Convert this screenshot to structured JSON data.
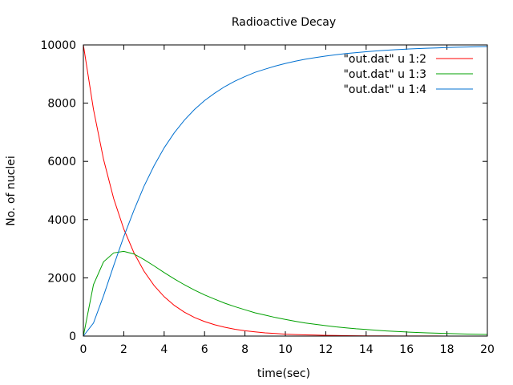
{
  "chart_data": {
    "type": "line",
    "title": "Radioactive Decay",
    "xlabel": "time(sec)",
    "ylabel": "No. of nuclei",
    "xlim": [
      0,
      20
    ],
    "ylim": [
      0,
      10000
    ],
    "grid": false,
    "legend_position": "top-right",
    "x_ticks": [
      "0",
      "2",
      "4",
      "6",
      "8",
      "10",
      "12",
      "14",
      "16",
      "18",
      "20"
    ],
    "y_ticks": [
      "0",
      "2000",
      "4000",
      "6000",
      "8000",
      "10000"
    ],
    "x": [
      0,
      0.5,
      1,
      1.5,
      2,
      2.5,
      3,
      3.5,
      4,
      4.5,
      5,
      5.5,
      6,
      6.5,
      7,
      7.5,
      8,
      8.5,
      9,
      9.5,
      10,
      10.5,
      11,
      11.5,
      12,
      12.5,
      13,
      13.5,
      14,
      14.5,
      15,
      15.5,
      16,
      16.5,
      17,
      17.5,
      18,
      18.5,
      19,
      19.5,
      20
    ],
    "series": [
      {
        "name": "\"out.dat\" u 1:2",
        "color": "#ff0000",
        "values": [
          10000,
          7788,
          6065,
          4724,
          3679,
          2865,
          2231,
          1738,
          1353,
          1054,
          821,
          639,
          498,
          388,
          302,
          235,
          183,
          143,
          111,
          87,
          67,
          52,
          41,
          32,
          25,
          19,
          15,
          12,
          9,
          7,
          6,
          4,
          3,
          3,
          2,
          2,
          1,
          1,
          1,
          1,
          0
        ]
      },
      {
        "name": "\"out.dat\" u 1:3",
        "color": "#00a000",
        "values": [
          0,
          1767,
          2550,
          2856,
          2908,
          2820,
          2627,
          2410,
          2182,
          1965,
          1764,
          1579,
          1413,
          1270,
          1130,
          1010,
          903,
          800,
          720,
          640,
          570,
          508,
          450,
          402,
          357,
          318,
          283,
          252,
          225,
          199,
          177,
          158,
          140,
          125,
          111,
          99,
          88,
          79,
          70,
          62,
          55
        ]
      },
      {
        "name": "\"out.dat\" u 1:4",
        "color": "#0070d0",
        "values": [
          0,
          445,
          1385,
          2420,
          3413,
          4315,
          5142,
          5852,
          6465,
          6981,
          7415,
          7782,
          8089,
          8342,
          8568,
          8755,
          8914,
          9057,
          9169,
          9273,
          9363,
          9440,
          9509,
          9566,
          9618,
          9663,
          9702,
          9736,
          9766,
          9794,
          9817,
          9838,
          9857,
          9872,
          9887,
          9899,
          9911,
          9920,
          9929,
          9937,
          9945
        ]
      }
    ]
  }
}
